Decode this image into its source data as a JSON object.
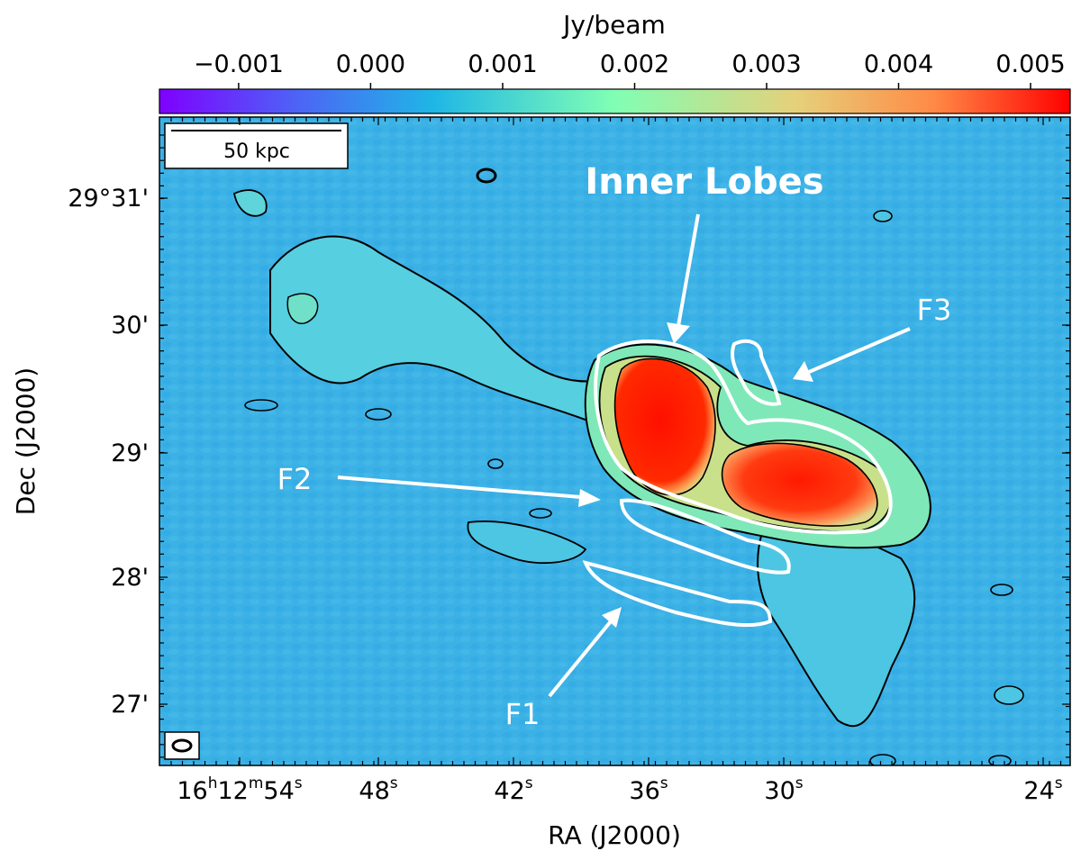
{
  "colorbar": {
    "label": "Jy/beam",
    "ticks": [
      "−0.001",
      "0.000",
      "0.001",
      "0.002",
      "0.003",
      "0.004",
      "0.005"
    ],
    "range": [
      -0.0016,
      0.0053
    ],
    "colormap": "rainbow"
  },
  "scale_bar": {
    "label": "50 kpc"
  },
  "axes": {
    "xlabel": "RA (J2000)",
    "ylabel": "Dec (J2000)",
    "x_ticks": [
      {
        "h": "16",
        "hs": "h",
        "m": "12",
        "ms": "m",
        "s": "54",
        "ss": "s"
      },
      {
        "s": "48",
        "ss": "s"
      },
      {
        "s": "42",
        "ss": "s"
      },
      {
        "s": "36",
        "ss": "s"
      },
      {
        "s": "30",
        "ss": "s"
      },
      {
        "s": "24",
        "ss": "s"
      }
    ],
    "y_ticks": [
      "29°31'",
      "30'",
      "29'",
      "28'",
      "27'"
    ]
  },
  "annotations": {
    "inner_lobes": "Inner Lobes",
    "f1": "F1",
    "f2": "F2",
    "f3": "F3"
  },
  "colors": {
    "background_map": "#3cb2e8",
    "annotation": "#ffffff",
    "contour": "#000000",
    "lobe_core": "#ff1500"
  }
}
